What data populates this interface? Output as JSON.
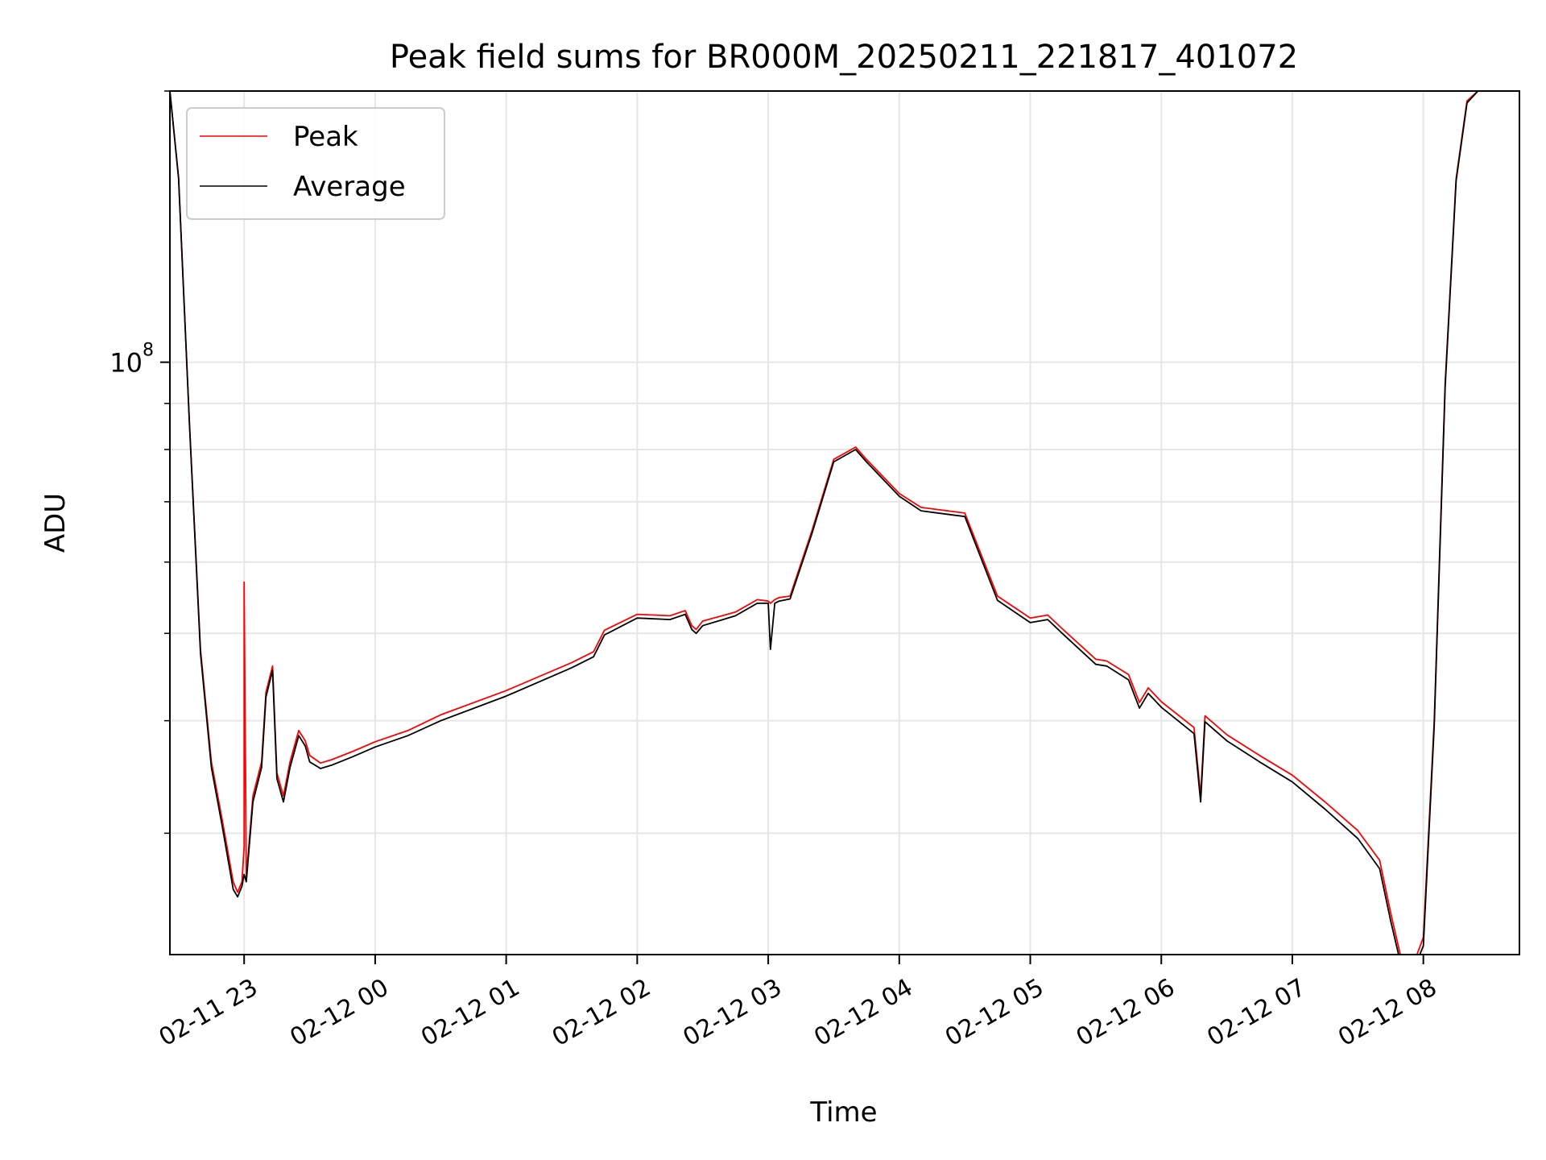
{
  "chart_data": {
    "type": "line",
    "title": "Peak field sums for BR000M_20250211_221817_401072",
    "xlabel": "Time",
    "ylabel": "ADU",
    "y_scale": "log",
    "ylim": [
      22000000,
      200000000
    ],
    "xlim": [
      "2025-02-11 22:26",
      "2025-02-12 08:44"
    ],
    "grid": true,
    "legend": "top-left",
    "x_ticks": [
      "02-11 23",
      "02-12 00",
      "02-12 01",
      "02-12 02",
      "02-12 03",
      "02-12 04",
      "02-12 05",
      "02-12 06",
      "02-12 07",
      "02-12 08"
    ],
    "x_tick_times": [
      "2025-02-11 23:00",
      "2025-02-12 00:00",
      "2025-02-12 01:00",
      "2025-02-12 02:00",
      "2025-02-12 03:00",
      "2025-02-12 04:00",
      "2025-02-12 05:00",
      "2025-02-12 06:00",
      "2025-02-12 07:00",
      "2025-02-12 08:00"
    ],
    "y_major_tick": {
      "value": 100000000,
      "label": "10",
      "exponent": "8"
    },
    "y_minor_ticks": [
      30000000,
      40000000,
      50000000,
      60000000,
      70000000,
      80000000,
      90000000,
      200000000
    ],
    "series": [
      {
        "name": "Peak",
        "color": "#ff0000",
        "x": [
          "2025-02-11 22:26",
          "2025-02-11 22:30",
          "2025-02-11 22:35",
          "2025-02-11 22:40",
          "2025-02-11 22:45",
          "2025-02-11 22:50",
          "2025-02-11 22:55",
          "2025-02-11 22:57",
          "2025-02-11 22:59",
          "2025-02-11 23:00",
          "2025-02-11 23:00",
          "2025-02-11 23:01",
          "2025-02-11 23:04",
          "2025-02-11 23:08",
          "2025-02-11 23:10",
          "2025-02-11 23:13",
          "2025-02-11 23:15",
          "2025-02-11 23:18",
          "2025-02-11 23:21",
          "2025-02-11 23:25",
          "2025-02-11 23:28",
          "2025-02-11 23:30",
          "2025-02-11 23:35",
          "2025-02-11 23:40",
          "2025-02-11 23:50",
          "2025-02-12 00:00",
          "2025-02-12 00:15",
          "2025-02-12 00:30",
          "2025-02-12 01:00",
          "2025-02-12 01:30",
          "2025-02-12 01:40",
          "2025-02-12 01:45",
          "2025-02-12 02:00",
          "2025-02-12 02:15",
          "2025-02-12 02:22",
          "2025-02-12 02:25",
          "2025-02-12 02:27",
          "2025-02-12 02:30",
          "2025-02-12 02:45",
          "2025-02-12 02:55",
          "2025-02-12 03:00",
          "2025-02-12 03:01",
          "2025-02-12 03:03",
          "2025-02-12 03:05",
          "2025-02-12 03:10",
          "2025-02-12 03:20",
          "2025-02-12 03:30",
          "2025-02-12 03:40",
          "2025-02-12 03:45",
          "2025-02-12 04:00",
          "2025-02-12 04:10",
          "2025-02-12 04:20",
          "2025-02-12 04:30",
          "2025-02-12 04:45",
          "2025-02-12 05:00",
          "2025-02-12 05:08",
          "2025-02-12 05:15",
          "2025-02-12 05:30",
          "2025-02-12 05:35",
          "2025-02-12 05:45",
          "2025-02-12 05:50",
          "2025-02-12 05:54",
          "2025-02-12 06:00",
          "2025-02-12 06:15",
          "2025-02-12 06:18",
          "2025-02-12 06:20",
          "2025-02-12 06:30",
          "2025-02-12 06:45",
          "2025-02-12 07:00",
          "2025-02-12 07:15",
          "2025-02-12 07:30",
          "2025-02-12 07:40",
          "2025-02-12 07:45",
          "2025-02-12 07:50",
          "2025-02-12 07:55",
          "2025-02-12 08:00",
          "2025-02-12 08:05",
          "2025-02-12 08:10",
          "2025-02-12 08:15",
          "2025-02-12 08:20",
          "2025-02-12 08:25"
        ],
        "values": [
          200000000,
          160000000,
          85000000,
          48000000,
          36000000,
          31000000,
          26500000,
          25800000,
          26500000,
          29000000,
          57000000,
          26800000,
          33000000,
          36000000,
          43000000,
          46000000,
          35000000,
          33000000,
          36000000,
          39000000,
          38000000,
          36600000,
          35900000,
          36200000,
          37000000,
          37900000,
          39000000,
          40600000,
          43200000,
          46400000,
          47700000,
          50400000,
          52500000,
          52300000,
          53000000,
          51000000,
          50500000,
          51600000,
          52800000,
          54500000,
          54300000,
          54000000,
          54500000,
          54800000,
          55000000,
          65000000,
          78000000,
          80500000,
          78000000,
          71500000,
          69000000,
          68500000,
          68000000,
          55000000,
          52000000,
          52400000,
          50500000,
          46800000,
          46600000,
          45000000,
          41900000,
          43500000,
          42000000,
          39300000,
          33000000,
          40500000,
          38600000,
          36600000,
          34800000,
          32500000,
          30200000,
          28000000,
          24500000,
          21700000,
          21300000,
          23000000,
          40000000,
          95000000,
          160000000,
          195000000,
          200000000
        ]
      },
      {
        "name": "Average",
        "color": "#000000",
        "x": [
          "2025-02-11 22:26",
          "2025-02-11 22:30",
          "2025-02-11 22:35",
          "2025-02-11 22:40",
          "2025-02-11 22:45",
          "2025-02-11 22:50",
          "2025-02-11 22:55",
          "2025-02-11 22:57",
          "2025-02-11 22:59",
          "2025-02-11 23:00",
          "2025-02-11 23:01",
          "2025-02-11 23:04",
          "2025-02-11 23:08",
          "2025-02-11 23:10",
          "2025-02-11 23:13",
          "2025-02-11 23:15",
          "2025-02-11 23:18",
          "2025-02-11 23:21",
          "2025-02-11 23:25",
          "2025-02-11 23:28",
          "2025-02-11 23:30",
          "2025-02-11 23:35",
          "2025-02-11 23:40",
          "2025-02-11 23:50",
          "2025-02-12 00:00",
          "2025-02-12 00:15",
          "2025-02-12 00:30",
          "2025-02-12 01:00",
          "2025-02-12 01:30",
          "2025-02-12 01:40",
          "2025-02-12 01:45",
          "2025-02-12 02:00",
          "2025-02-12 02:15",
          "2025-02-12 02:22",
          "2025-02-12 02:25",
          "2025-02-12 02:27",
          "2025-02-12 02:30",
          "2025-02-12 02:45",
          "2025-02-12 02:55",
          "2025-02-12 03:00",
          "2025-02-12 03:01",
          "2025-02-12 03:03",
          "2025-02-12 03:05",
          "2025-02-12 03:10",
          "2025-02-12 03:20",
          "2025-02-12 03:30",
          "2025-02-12 03:40",
          "2025-02-12 03:45",
          "2025-02-12 04:00",
          "2025-02-12 04:10",
          "2025-02-12 04:20",
          "2025-02-12 04:30",
          "2025-02-12 04:45",
          "2025-02-12 05:00",
          "2025-02-12 05:08",
          "2025-02-12 05:15",
          "2025-02-12 05:30",
          "2025-02-12 05:35",
          "2025-02-12 05:45",
          "2025-02-12 05:50",
          "2025-02-12 05:54",
          "2025-02-12 06:00",
          "2025-02-12 06:15",
          "2025-02-12 06:18",
          "2025-02-12 06:20",
          "2025-02-12 06:30",
          "2025-02-12 06:45",
          "2025-02-12 07:00",
          "2025-02-12 07:15",
          "2025-02-12 07:30",
          "2025-02-12 07:40",
          "2025-02-12 07:45",
          "2025-02-12 07:50",
          "2025-02-12 07:55",
          "2025-02-12 08:00",
          "2025-02-12 08:05",
          "2025-02-12 08:10",
          "2025-02-12 08:15",
          "2025-02-12 08:20",
          "2025-02-12 08:25"
        ],
        "values": [
          200000000,
          160000000,
          85000000,
          47500000,
          35500000,
          30500000,
          26000000,
          25500000,
          26200000,
          27000000,
          26500000,
          32500000,
          35500000,
          42500000,
          45500000,
          34500000,
          32500000,
          35500000,
          38500000,
          37500000,
          36000000,
          35400000,
          35700000,
          36500000,
          37400000,
          38500000,
          40000000,
          42600000,
          45800000,
          47100000,
          49800000,
          52000000,
          51800000,
          52500000,
          50500000,
          50000000,
          51000000,
          52300000,
          54000000,
          54000000,
          48000000,
          54000000,
          54300000,
          54600000,
          64500000,
          77500000,
          80000000,
          77500000,
          71000000,
          68400000,
          67900000,
          67400000,
          54400000,
          51400000,
          51800000,
          49900000,
          46200000,
          46000000,
          44400000,
          41300000,
          42900000,
          41400000,
          38700000,
          32500000,
          39900000,
          38000000,
          36000000,
          34200000,
          31900000,
          29600000,
          27400000,
          24000000,
          21300000,
          21000000,
          22500000,
          39500000,
          94000000,
          159000000,
          194000000,
          200000000
        ]
      }
    ]
  }
}
